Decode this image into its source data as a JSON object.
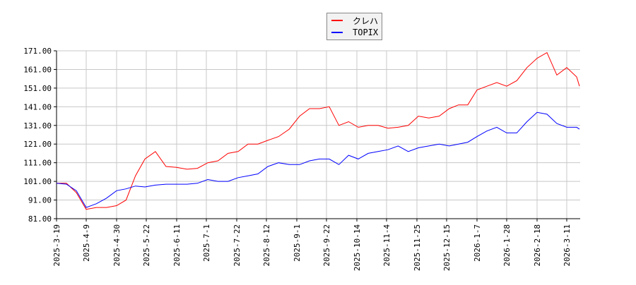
{
  "chart_data": {
    "type": "line",
    "title": "",
    "xlabel": "",
    "ylabel": "",
    "ylim": [
      81,
      171
    ],
    "yticks": [
      "81.00",
      "91.00",
      "101.00",
      "111.00",
      "121.00",
      "131.00",
      "141.00",
      "151.00",
      "161.00",
      "171.00"
    ],
    "xticks": [
      "2025-3-19",
      "2025-4-9",
      "2025-4-30",
      "2025-5-22",
      "2025-6-11",
      "2025-7-1",
      "2025-7-22",
      "2025-8-12",
      "2025-9-1",
      "2025-9-22",
      "2025-10-14",
      "2025-11-4",
      "2025-11-25",
      "2025-12-15",
      "2026-1-7",
      "2026-1-28",
      "2026-2-18",
      "2026-3-11"
    ],
    "grid": true,
    "legend_position": "top-center",
    "x": [
      "2025-3-19",
      "2025-3-26",
      "2025-4-2",
      "2025-4-9",
      "2025-4-16",
      "2025-4-23",
      "2025-4-30",
      "2025-5-7",
      "2025-5-14",
      "2025-5-21",
      "2025-5-28",
      "2025-6-4",
      "2025-6-11",
      "2025-6-18",
      "2025-6-25",
      "2025-7-2",
      "2025-7-9",
      "2025-7-16",
      "2025-7-23",
      "2025-7-30",
      "2025-8-6",
      "2025-8-13",
      "2025-8-20",
      "2025-8-27",
      "2025-9-3",
      "2025-9-10",
      "2025-9-17",
      "2025-9-24",
      "2025-10-1",
      "2025-10-8",
      "2025-10-15",
      "2025-10-22",
      "2025-10-29",
      "2025-11-5",
      "2025-11-12",
      "2025-11-19",
      "2025-11-26",
      "2025-12-3",
      "2025-12-10",
      "2025-12-17",
      "2025-12-24",
      "2025-12-31",
      "2026-1-7",
      "2026-1-14",
      "2026-1-21",
      "2026-1-28",
      "2026-2-4",
      "2026-2-11",
      "2026-2-18",
      "2026-2-25",
      "2026-3-4",
      "2026-3-11",
      "2026-3-18",
      "2026-3-20"
    ],
    "series": [
      {
        "name": "クレハ",
        "color": "#ff0000",
        "values": [
          100,
          100,
          95,
          86,
          87,
          87,
          88,
          91,
          104,
          113,
          117,
          109,
          108.5,
          107.5,
          108,
          111,
          112,
          116,
          117,
          121,
          121,
          123,
          125,
          129,
          136,
          140,
          140,
          141,
          131,
          133,
          130,
          131,
          131,
          129.5,
          130,
          131,
          136,
          135,
          136,
          140,
          142,
          142,
          150,
          152,
          154,
          152,
          155,
          162,
          167,
          170,
          158,
          162,
          157,
          152
        ]
      },
      {
        "name": "TOPIX",
        "color": "#0000ff",
        "values": [
          100,
          99.5,
          96,
          87,
          89,
          92,
          96,
          97,
          98.5,
          98,
          99,
          99.5,
          99.5,
          99.5,
          100,
          102,
          101,
          101,
          103,
          104,
          105,
          109,
          111,
          110,
          110,
          112,
          113,
          113,
          110,
          115,
          113,
          116,
          117,
          118,
          120,
          117,
          119,
          120,
          121,
          120,
          121,
          122,
          125,
          128,
          130,
          127,
          127,
          133,
          138,
          137,
          132,
          130,
          130,
          129
        ]
      }
    ]
  }
}
